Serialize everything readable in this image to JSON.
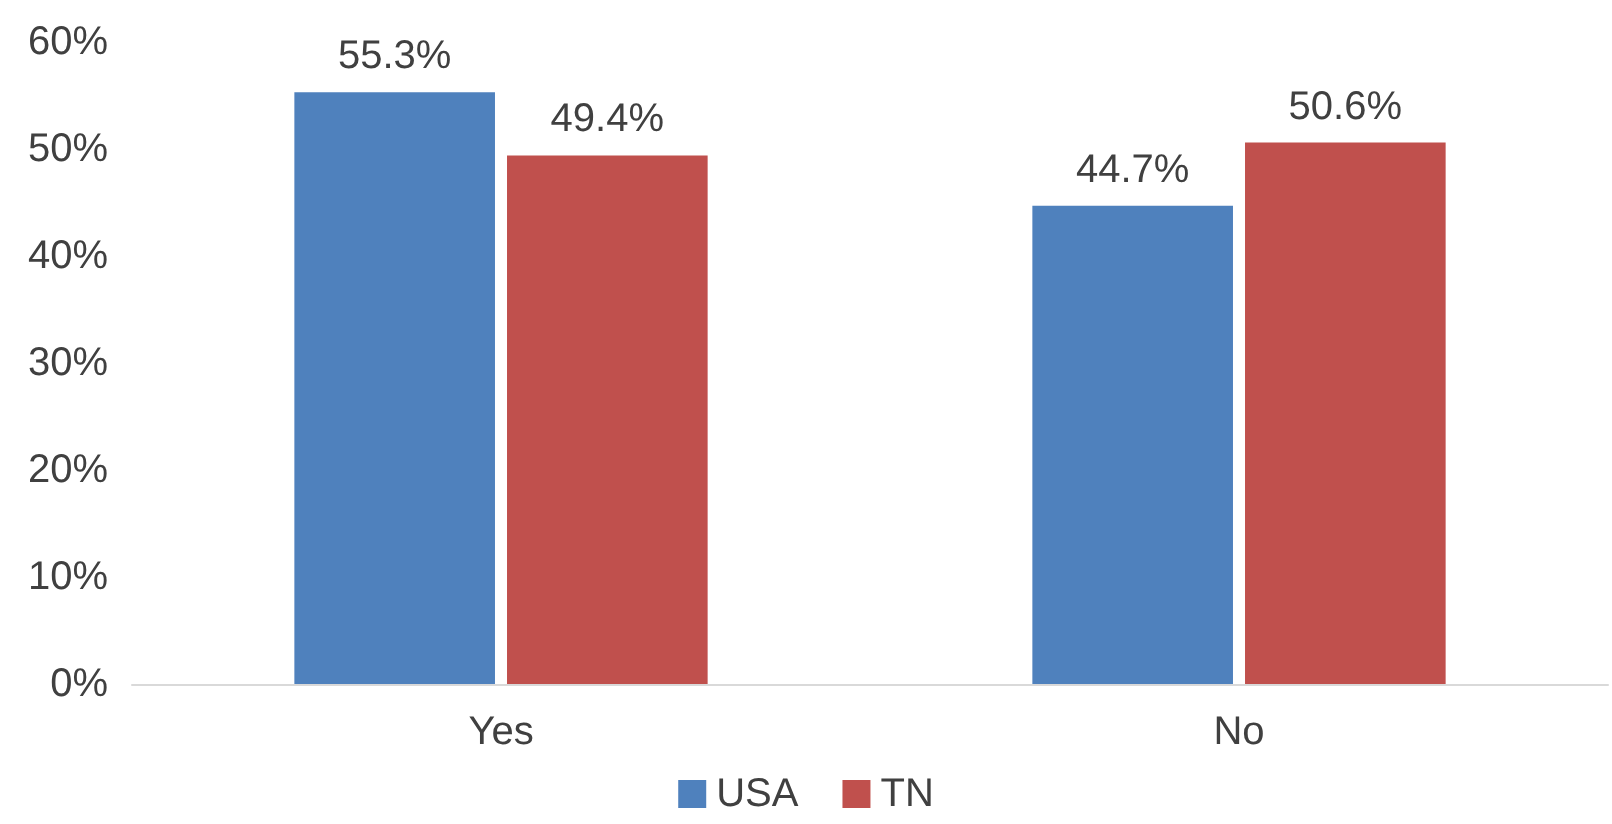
{
  "chart_data": {
    "type": "bar",
    "categories": [
      "Yes",
      "No"
    ],
    "series": [
      {
        "name": "USA",
        "color": "#4f81bd",
        "values": [
          55.3,
          44.7
        ],
        "value_labels": [
          "55.3%",
          "44.7%"
        ]
      },
      {
        "name": "TN",
        "color": "#c0504d",
        "values": [
          49.4,
          50.6
        ],
        "value_labels": [
          "49.4%",
          "50.6%"
        ]
      }
    ],
    "ylim": [
      0,
      60
    ],
    "yticks": [
      {
        "value": 0,
        "label": "0%"
      },
      {
        "value": 10,
        "label": "10%"
      },
      {
        "value": 20,
        "label": "20%"
      },
      {
        "value": 30,
        "label": "30%"
      },
      {
        "value": 40,
        "label": "40%"
      },
      {
        "value": 50,
        "label": "50%"
      },
      {
        "value": 60,
        "label": "60%"
      }
    ],
    "grid": false,
    "legend": "bottom"
  }
}
